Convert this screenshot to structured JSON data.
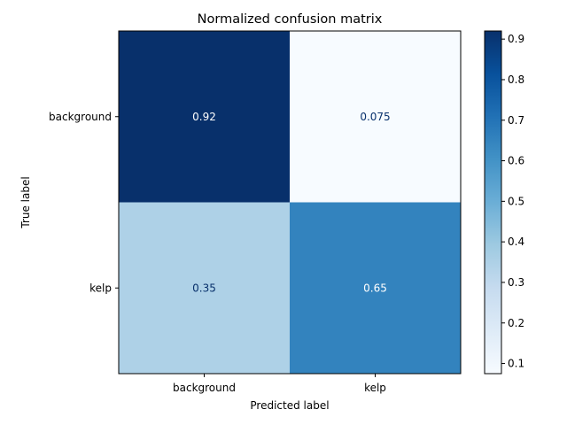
{
  "chart_data": {
    "type": "heatmap",
    "title": "Normalized confusion matrix",
    "xlabel": "Predicted label",
    "ylabel": "True label",
    "x_categories": [
      "background",
      "kelp"
    ],
    "y_categories": [
      "background",
      "kelp"
    ],
    "values": [
      [
        0.92,
        0.075
      ],
      [
        0.35,
        0.65
      ]
    ],
    "cell_labels": [
      [
        "0.92",
        "0.075"
      ],
      [
        "0.35",
        "0.65"
      ]
    ],
    "colormap": "Blues",
    "colorbar": {
      "range": [
        0.075,
        0.92
      ],
      "ticks": [
        0.1,
        0.2,
        0.3,
        0.4,
        0.5,
        0.6,
        0.7,
        0.8,
        0.9
      ],
      "tick_labels": [
        "0.1",
        "0.2",
        "0.3",
        "0.4",
        "0.5",
        "0.6",
        "0.7",
        "0.8",
        "0.9"
      ]
    },
    "colors": {
      "dark_text": "#08306b",
      "light_text": "#ffffff"
    },
    "grid": false
  }
}
